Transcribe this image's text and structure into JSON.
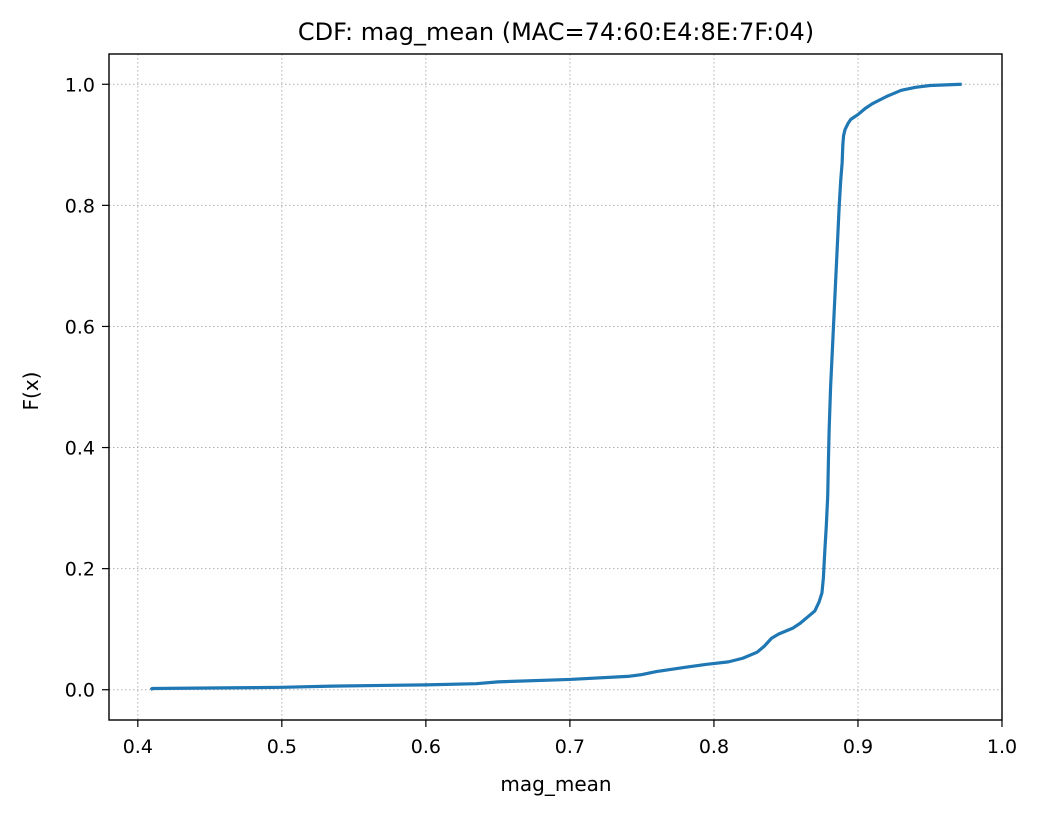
{
  "chart_data": {
    "type": "line",
    "title": "CDF: mag_mean (MAC=74:60:E4:8E:7F:04)",
    "xlabel": "mag_mean",
    "ylabel": "F(x)",
    "xlim": [
      0.38,
      1.0
    ],
    "ylim": [
      -0.05,
      1.05
    ],
    "xticks": [
      0.4,
      0.5,
      0.6,
      0.7,
      0.8,
      0.9,
      1.0
    ],
    "xtick_labels": [
      "0.4",
      "0.5",
      "0.6",
      "0.7",
      "0.8",
      "0.9",
      "1.0"
    ],
    "yticks": [
      0.0,
      0.2,
      0.4,
      0.6,
      0.8,
      1.0
    ],
    "ytick_labels": [
      "0.0",
      "0.2",
      "0.4",
      "0.6",
      "0.8",
      "1.0"
    ],
    "grid": true,
    "color": "#1f77b4",
    "series": [
      {
        "x": [
          0.409,
          0.41,
          0.46,
          0.5,
          0.535,
          0.6,
          0.635,
          0.65,
          0.7,
          0.74,
          0.75,
          0.76,
          0.78,
          0.795,
          0.81,
          0.82,
          0.83,
          0.835,
          0.84,
          0.845,
          0.85,
          0.855,
          0.86,
          0.865,
          0.87,
          0.873,
          0.875,
          0.876,
          0.877,
          0.878,
          0.879,
          0.8795,
          0.88,
          0.881,
          0.882,
          0.883,
          0.884,
          0.885,
          0.886,
          0.887,
          0.888,
          0.889,
          0.8895,
          0.89,
          0.891,
          0.893,
          0.895,
          0.9,
          0.905,
          0.91,
          0.92,
          0.93,
          0.94,
          0.95,
          0.972
        ],
        "y": [
          0.0,
          0.002,
          0.003,
          0.004,
          0.006,
          0.008,
          0.01,
          0.013,
          0.017,
          0.022,
          0.025,
          0.03,
          0.037,
          0.042,
          0.046,
          0.052,
          0.062,
          0.072,
          0.085,
          0.092,
          0.097,
          0.102,
          0.11,
          0.12,
          0.13,
          0.145,
          0.16,
          0.185,
          0.23,
          0.27,
          0.32,
          0.38,
          0.43,
          0.5,
          0.55,
          0.6,
          0.65,
          0.7,
          0.75,
          0.8,
          0.84,
          0.87,
          0.9,
          0.915,
          0.925,
          0.935,
          0.942,
          0.95,
          0.96,
          0.968,
          0.98,
          0.99,
          0.995,
          0.998,
          1.0
        ]
      }
    ]
  }
}
